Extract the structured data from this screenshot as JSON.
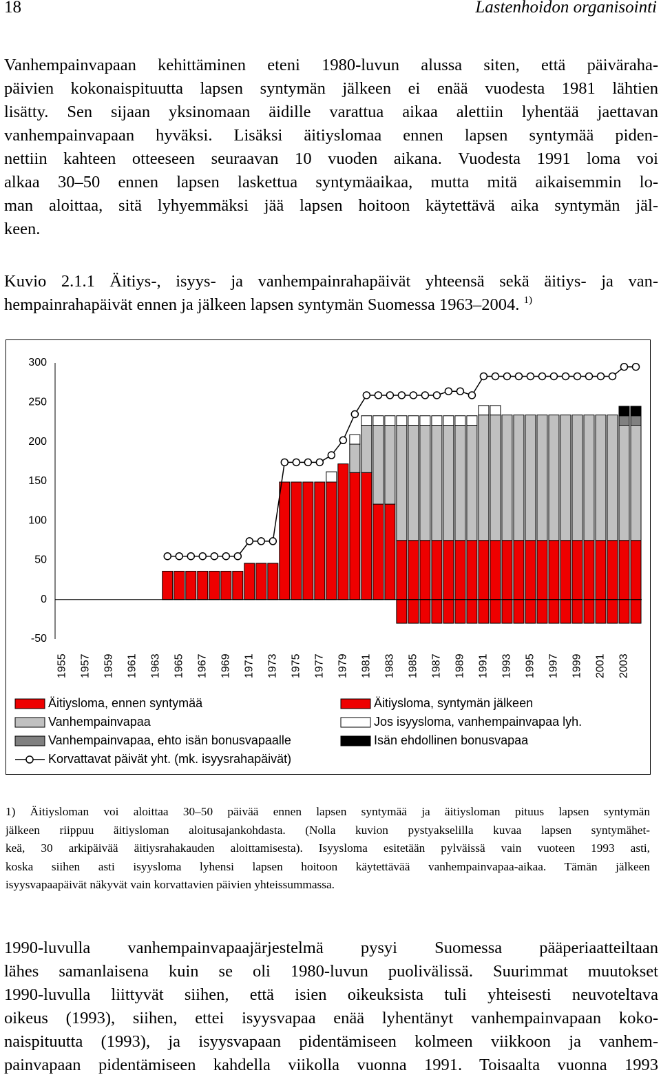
{
  "header": {
    "page_number": "18",
    "title": "Lastenhoidon organisointi"
  },
  "body_top": [
    "Vanhempainvapaan kehittäminen eteni 1980-luvun alussa siten, että päiväraha-",
    "päivien kokonaispituutta lapsen syntymän jälkeen ei enää vuodesta 1981 lähtien",
    "lisätty. Sen sijaan yksinomaan äidille varattua aikaa alettiin lyhentää jaettavan",
    "vanhempainvapaan hyväksi. Lisäksi äitiyslomaa ennen lapsen syntymää piden-",
    "nettiin kahteen otteeseen seuraavan 10 vuoden aikana. Vuodesta 1991 loma voi",
    "alkaa 30–50 ennen lapsen laskettua syntymäaikaa, mutta mitä aikaisemmin lo-",
    "man aloittaa, sitä lyhyemmäksi jää lapsen hoitoon käytettävä aika syntymän jäl-",
    "keen."
  ],
  "caption": {
    "lines": [
      "Kuvio 2.1.1 Äitiys-, isyys- ja vanhempainrahapäivät yhteensä sekä äitiys- ja van-",
      "hempainrahapäivät ennen ja jälkeen lapsen syntymän Suomessa 1963–2004."
    ],
    "note_marker": "1)"
  },
  "chart_data": {
    "type": "bar",
    "stacked": true,
    "legend": "bottom",
    "x": [
      1964,
      1965,
      1966,
      1967,
      1968,
      1969,
      1970,
      1971,
      1972,
      1973,
      1974,
      1975,
      1976,
      1977,
      1978,
      1979,
      1980,
      1981,
      1982,
      1983,
      1984,
      1985,
      1986,
      1987,
      1988,
      1989,
      1990,
      1991,
      1992,
      1993,
      1994,
      1995,
      1996,
      1997,
      1998,
      1999,
      2000,
      2001,
      2002,
      2003,
      2004
    ],
    "xlim": [
      1954.4,
      2004.5
    ],
    "xticks": [
      1955,
      1957,
      1959,
      1961,
      1963,
      1965,
      1967,
      1969,
      1971,
      1973,
      1975,
      1977,
      1979,
      1981,
      1983,
      1985,
      1987,
      1989,
      1991,
      1993,
      1995,
      1997,
      1999,
      2001,
      2003
    ],
    "ylim": [
      -50,
      300
    ],
    "yticks": [
      -50,
      0,
      50,
      100,
      150,
      200,
      250,
      300
    ],
    "series": [
      {
        "name": "Äitiysloma, syntymän jälkeen",
        "type": "bar",
        "color": "#ee0000",
        "values": [
          36,
          36,
          36,
          36,
          36,
          36,
          36,
          46,
          46,
          46,
          149,
          149,
          149,
          149,
          149,
          172,
          161,
          161,
          121,
          121,
          75,
          75,
          75,
          75,
          75,
          75,
          75,
          75,
          75,
          75,
          75,
          75,
          75,
          75,
          75,
          75,
          75,
          75,
          75,
          75,
          75
        ]
      },
      {
        "name": "Äitiysloma, ennen syntymää",
        "type": "bar",
        "color": "#ee0000",
        "values": [
          null,
          null,
          null,
          null,
          null,
          null,
          null,
          null,
          null,
          null,
          null,
          null,
          null,
          null,
          null,
          null,
          null,
          null,
          null,
          null,
          -30,
          -30,
          -30,
          -30,
          -30,
          -30,
          -30,
          -30,
          -30,
          -30,
          -30,
          -30,
          -30,
          -30,
          -30,
          -30,
          -30,
          -30,
          -30,
          -30,
          -30
        ]
      },
      {
        "name": "Vanhempainvapaa",
        "type": "bar",
        "color": "#c0c0c0",
        "values": [
          null,
          null,
          null,
          null,
          null,
          null,
          null,
          null,
          null,
          null,
          null,
          null,
          null,
          null,
          null,
          null,
          36,
          60,
          100,
          100,
          146,
          146,
          146,
          146,
          146,
          146,
          146,
          159,
          159,
          159,
          159,
          159,
          159,
          159,
          159,
          159,
          159,
          159,
          159,
          146,
          146
        ]
      },
      {
        "name": "Vanhempainvapaa, ehto isän bonusvapaalle",
        "type": "bar",
        "color": "#808080",
        "values": [
          null,
          null,
          null,
          null,
          null,
          null,
          null,
          null,
          null,
          null,
          null,
          null,
          null,
          null,
          null,
          null,
          null,
          null,
          null,
          null,
          null,
          null,
          null,
          null,
          null,
          null,
          null,
          null,
          null,
          null,
          null,
          null,
          null,
          null,
          null,
          null,
          null,
          null,
          null,
          12,
          12
        ]
      },
      {
        "name": "Jos isyysloma, vanhempainvapaa lyh.",
        "type": "bar",
        "color": "#ffffff",
        "values": [
          null,
          null,
          null,
          null,
          null,
          null,
          null,
          null,
          null,
          null,
          null,
          null,
          null,
          null,
          13,
          null,
          12,
          12,
          12,
          12,
          12,
          12,
          12,
          12,
          12,
          12,
          12,
          12,
          12,
          null,
          null,
          null,
          null,
          null,
          null,
          null,
          null,
          null,
          null,
          null,
          null
        ]
      },
      {
        "name": "Isän ehdollinen bonusvapaa",
        "type": "bar",
        "color": "#000000",
        "values": [
          null,
          null,
          null,
          null,
          null,
          null,
          null,
          null,
          null,
          null,
          null,
          null,
          null,
          null,
          null,
          null,
          null,
          null,
          null,
          null,
          null,
          null,
          null,
          null,
          null,
          null,
          null,
          null,
          null,
          null,
          null,
          null,
          null,
          null,
          null,
          null,
          null,
          null,
          null,
          12,
          12
        ]
      },
      {
        "name": "Korvattavat päivät yht. (mk. isyysrahapäivät)",
        "type": "line",
        "color": "#000000",
        "values": [
          55,
          55,
          55,
          55,
          55,
          55,
          55,
          74,
          74,
          74,
          174,
          174,
          174,
          174,
          183,
          202,
          235,
          259,
          259,
          259,
          259,
          259,
          259,
          259,
          264,
          264,
          259,
          283,
          283,
          283,
          283,
          283,
          283,
          283,
          283,
          283,
          283,
          283,
          283,
          295,
          295
        ]
      }
    ]
  },
  "footnote": [
    "1) Äitiysloman voi aloittaa 30–50 päivää ennen lapsen syntymää ja äitiysloman pituus lapsen syntymän",
    "jälkeen riippuu äitiysloman aloitusajankohdasta. (Nolla kuvion pystyakselilla kuvaa lapsen syntymähet-",
    "keä, 30 arkipäivää äitiysrahakauden aloittamisesta). Isyysloma esitetään pylväissä vain vuoteen 1993 asti,",
    "koska siihen asti isyysloma lyhensi lapsen hoitoon käytettävää vanhempainvapaa-aikaa. Tämän jälkeen",
    "isyysvapaapäivät näkyvät vain korvattavien päivien yhteissummassa."
  ],
  "body_bottom": [
    "1990-luvulla vanhempainvapaajärjestelmä pysyi Suomessa pääperiaatteiltaan",
    "lähes samanlaisena kuin se oli 1980-luvun puolivälissä. Suurimmat muutokset",
    "1990-luvulla liittyvät siihen, että isien oikeuksista tuli yhteisesti neuvoteltava",
    "oikeus (1993), siihen, ettei isyysvapaa enää lyhentänyt vanhempainvapaan koko-",
    "naispituutta (1993), ja isyysvapaan pidentämiseen kolmeen viikkoon ja vanhem-",
    "painvapaan pidentämiseen kahdella viikolla vuonna 1991. Toisaalta vuonna 1993"
  ]
}
